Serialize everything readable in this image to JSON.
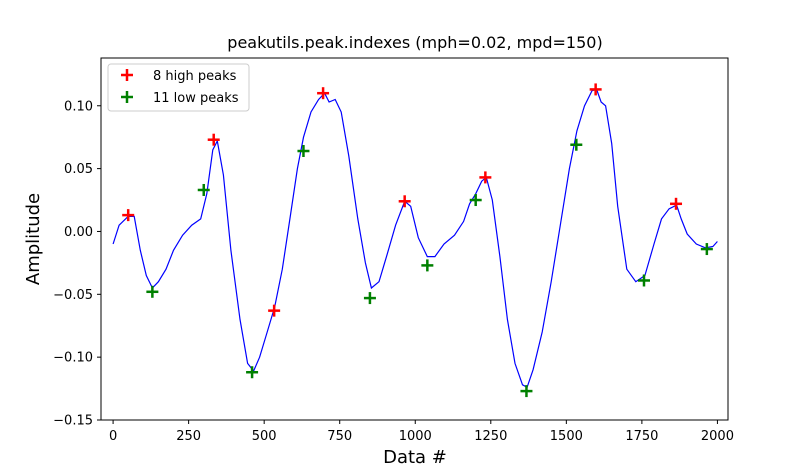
{
  "chart_data": {
    "type": "line",
    "title": "peakutils.peak.indexes (mph=0.02, mpd=150)",
    "xlabel": "Data #",
    "ylabel": "Amplitude",
    "xlim": [
      -40,
      2035
    ],
    "ylim": [
      -0.15,
      0.138
    ],
    "xticks": [
      0,
      250,
      500,
      750,
      1000,
      1250,
      1500,
      1750,
      2000
    ],
    "yticks": [
      -0.15,
      -0.1,
      -0.05,
      0.0,
      0.05,
      0.1
    ],
    "ytick_labels": [
      "−0.15",
      "−0.10",
      "−0.05",
      "0.00",
      "0.05",
      "0.10"
    ],
    "grid": false,
    "legend_position": "top-left",
    "signal": {
      "color": "#0000ff",
      "x": [
        0,
        20,
        50,
        70,
        90,
        110,
        130,
        150,
        175,
        200,
        230,
        260,
        290,
        310,
        330,
        345,
        365,
        390,
        420,
        445,
        465,
        485,
        510,
        535,
        560,
        585,
        610,
        630,
        655,
        680,
        700,
        715,
        735,
        755,
        780,
        810,
        835,
        855,
        880,
        905,
        935,
        965,
        985,
        1010,
        1040,
        1065,
        1095,
        1130,
        1160,
        1180,
        1200,
        1220,
        1235,
        1255,
        1280,
        1305,
        1330,
        1355,
        1370,
        1390,
        1420,
        1450,
        1480,
        1510,
        1535,
        1560,
        1585,
        1600,
        1615,
        1630,
        1650,
        1670,
        1700,
        1730,
        1760,
        1790,
        1815,
        1840,
        1865,
        1880,
        1900,
        1930,
        1960,
        1985,
        2000
      ],
      "y": [
        -0.01,
        0.005,
        0.012,
        0.012,
        -0.015,
        -0.035,
        -0.045,
        -0.04,
        -0.03,
        -0.015,
        -0.003,
        0.005,
        0.01,
        0.03,
        0.065,
        0.072,
        0.045,
        -0.015,
        -0.07,
        -0.105,
        -0.111,
        -0.1,
        -0.08,
        -0.06,
        -0.03,
        0.01,
        0.05,
        0.075,
        0.095,
        0.105,
        0.11,
        0.103,
        0.105,
        0.095,
        0.06,
        0.01,
        -0.025,
        -0.045,
        -0.04,
        -0.02,
        0.005,
        0.024,
        0.02,
        -0.005,
        -0.02,
        -0.02,
        -0.01,
        -0.003,
        0.008,
        0.022,
        0.03,
        0.04,
        0.043,
        0.025,
        -0.02,
        -0.07,
        -0.105,
        -0.122,
        -0.124,
        -0.11,
        -0.08,
        -0.04,
        0.005,
        0.05,
        0.08,
        0.1,
        0.112,
        0.113,
        0.103,
        0.1,
        0.07,
        0.02,
        -0.03,
        -0.04,
        -0.035,
        -0.01,
        0.01,
        0.018,
        0.021,
        0.01,
        -0.002,
        -0.01,
        -0.013,
        -0.012,
        -0.008
      ]
    },
    "series": [
      {
        "name": "8 high peaks",
        "color": "#ff0000",
        "x": [
          50,
          333,
          533,
          695,
          965,
          1232,
          1597,
          1863
        ],
        "y": [
          0.013,
          0.073,
          -0.063,
          0.11,
          0.024,
          0.043,
          0.113,
          0.022
        ]
      },
      {
        "name": "11 low peaks",
        "color": "#008000",
        "x": [
          130,
          300,
          460,
          630,
          850,
          1040,
          1200,
          1368,
          1533,
          1757,
          1965
        ],
        "y": [
          -0.048,
          0.033,
          -0.112,
          0.064,
          -0.053,
          -0.027,
          0.025,
          -0.127,
          0.069,
          -0.039,
          -0.014
        ]
      }
    ]
  }
}
